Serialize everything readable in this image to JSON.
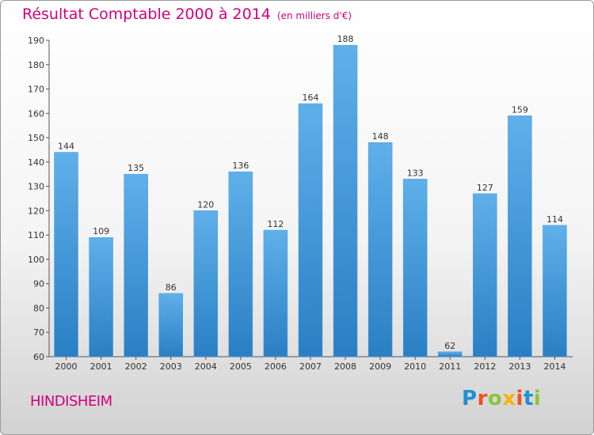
{
  "header": {
    "title": "Résultat Comptable 2000 à 2014",
    "unit": "(en milliers d'€)"
  },
  "footer": {
    "commune": "HINDISHEIM",
    "brand": "Proxiti"
  },
  "colors": {
    "title": "#d2007d",
    "bar_top": "#5fb0ea",
    "bar_bottom": "#2a7fc4"
  },
  "brand_letters": [
    {
      "ch": "P",
      "color": "#1f8fd6"
    },
    {
      "ch": "r",
      "color": "#e8541c"
    },
    {
      "ch": "o",
      "color": "#8bc43f"
    },
    {
      "ch": "x",
      "color": "#f4b400"
    },
    {
      "ch": "i",
      "color": "#e8541c"
    },
    {
      "ch": "t",
      "color": "#1f8fd6"
    },
    {
      "ch": "i",
      "color": "#8bc43f"
    }
  ],
  "chart_data": {
    "type": "bar",
    "title": "Résultat Comptable 2000 à 2014",
    "subtitle": "(en milliers d'€)",
    "xlabel": "",
    "ylabel": "",
    "categories": [
      "2000",
      "2001",
      "2002",
      "2003",
      "2004",
      "2005",
      "2006",
      "2007",
      "2008",
      "2009",
      "2010",
      "2011",
      "2012",
      "2013",
      "2014"
    ],
    "values": [
      144,
      109,
      135,
      86,
      120,
      136,
      112,
      164,
      188,
      148,
      133,
      62,
      127,
      159,
      114
    ],
    "ylim": [
      60,
      190
    ],
    "yticks": [
      60,
      70,
      80,
      90,
      100,
      110,
      120,
      130,
      140,
      150,
      160,
      170,
      180,
      190
    ],
    "grid": false,
    "legend": "none"
  }
}
